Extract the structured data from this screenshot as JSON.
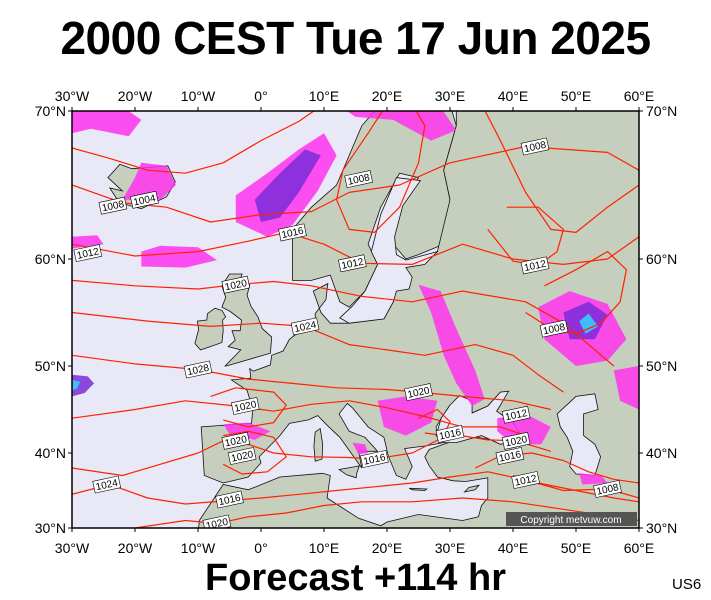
{
  "header": {
    "title": "2000 CEST Tue 17 Jun 2025"
  },
  "footer": {
    "forecast": "Forecast +114 hr",
    "model_code": "US6"
  },
  "map": {
    "lon_min": -30,
    "lon_max": 60,
    "lat_min": 30,
    "lat_max": 70,
    "lon_labels": [
      {
        "lon": -30,
        "text": "30°W"
      },
      {
        "lon": -20,
        "text": "20°W"
      },
      {
        "lon": -10,
        "text": "10°W"
      },
      {
        "lon": 0,
        "text": "0°"
      },
      {
        "lon": 10,
        "text": "10°E"
      },
      {
        "lon": 20,
        "text": "20°E"
      },
      {
        "lon": 30,
        "text": "30°E"
      },
      {
        "lon": 40,
        "text": "40°E"
      },
      {
        "lon": 50,
        "text": "50°E"
      },
      {
        "lon": 60,
        "text": "60°E"
      }
    ],
    "lat_labels": [
      {
        "lat": 70,
        "text": "70°N"
      },
      {
        "lat": 60,
        "text": "60°N"
      },
      {
        "lat": 50,
        "text": "50°N"
      },
      {
        "lat": 40,
        "text": "40°N"
      },
      {
        "lat": 30,
        "text": "30°N"
      }
    ],
    "isobar_labels": [
      {
        "lon": -23.5,
        "lat": 63.6,
        "text": "1008"
      },
      {
        "lon": -18.5,
        "lat": 64.0,
        "text": "1004"
      },
      {
        "lon": -27.5,
        "lat": 60.4,
        "text": "1012"
      },
      {
        "lon": 5.0,
        "lat": 61.8,
        "text": "1016"
      },
      {
        "lon": 15.5,
        "lat": 65.4,
        "text": "1008"
      },
      {
        "lon": 14.5,
        "lat": 59.6,
        "text": "1012"
      },
      {
        "lon": 43.5,
        "lat": 67.6,
        "text": "1008"
      },
      {
        "lon": 43.5,
        "lat": 59.4,
        "text": "1012"
      },
      {
        "lon": 46.5,
        "lat": 53.5,
        "text": "1008"
      },
      {
        "lon": -4.0,
        "lat": 57.6,
        "text": "1020"
      },
      {
        "lon": 7.0,
        "lat": 53.7,
        "text": "1024"
      },
      {
        "lon": -10.0,
        "lat": 49.6,
        "text": "1028"
      },
      {
        "lon": -2.5,
        "lat": 45.4,
        "text": "1020"
      },
      {
        "lon": -4.0,
        "lat": 41.4,
        "text": "1020"
      },
      {
        "lon": -3.0,
        "lat": 39.6,
        "text": "1020"
      },
      {
        "lon": 25.0,
        "lat": 47.0,
        "text": "1020"
      },
      {
        "lon": 30.0,
        "lat": 42.2,
        "text": "1016"
      },
      {
        "lon": 40.5,
        "lat": 44.4,
        "text": "1012"
      },
      {
        "lon": 40.5,
        "lat": 41.4,
        "text": "1020"
      },
      {
        "lon": 39.5,
        "lat": 39.6,
        "text": "1016"
      },
      {
        "lon": 42.0,
        "lat": 36.4,
        "text": "1012"
      },
      {
        "lon": 55.0,
        "lat": 35.2,
        "text": "1008"
      },
      {
        "lon": 18.0,
        "lat": 39.2,
        "text": "1016"
      },
      {
        "lon": -24.5,
        "lat": 35.8,
        "text": "1024"
      },
      {
        "lon": -5.0,
        "lat": 33.8,
        "text": "1016"
      },
      {
        "lon": -7.0,
        "lat": 30.6,
        "text": "1020"
      }
    ],
    "copyright": "Copyright metvuw.com",
    "colors": {
      "sea": "#e8e8f6",
      "land": "#c6cfbd",
      "isobar": "#ff2200",
      "precip": "#ff33ee",
      "precip_heavy": "#7a2bd8",
      "precip_core": "#2fd6ff",
      "frame": "#000000"
    }
  }
}
